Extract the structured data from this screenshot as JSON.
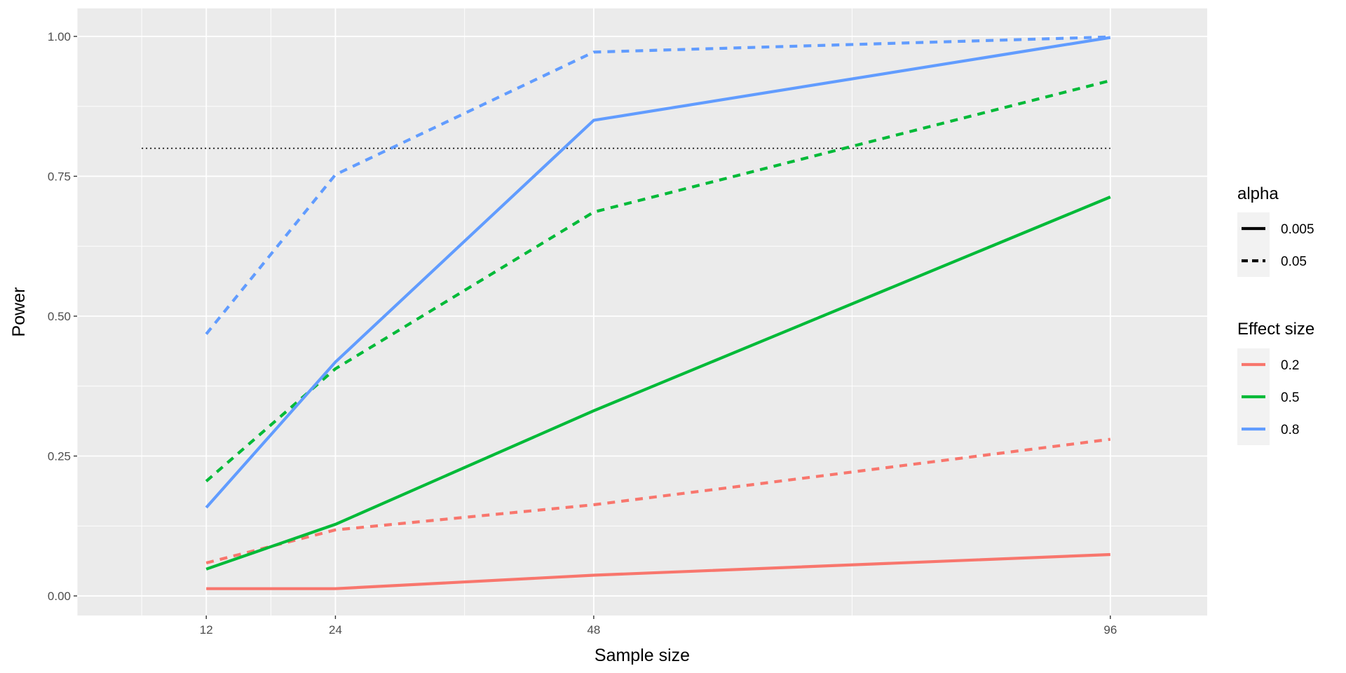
{
  "chart_data": {
    "type": "line",
    "xlabel": "Sample size",
    "ylabel": "Power",
    "x_ticks": [
      12,
      24,
      48,
      96
    ],
    "y_ticks": [
      "0.00",
      "0.25",
      "0.50",
      "0.75",
      "1.00"
    ],
    "xlim": [
      0,
      105
    ],
    "ylim": [
      -0.035,
      1.05
    ],
    "grid": true,
    "panel_background": "#EBEBEB",
    "reference_line": {
      "y": 0.8,
      "style": "dotted",
      "color": "#000000"
    },
    "legend_position": "right",
    "legends": {
      "alpha": {
        "title": "alpha",
        "entries": [
          {
            "label": "0.005",
            "linetype": "solid"
          },
          {
            "label": "0.05",
            "linetype": "dashed"
          }
        ]
      },
      "effect_size": {
        "title": "Effect size",
        "entries": [
          {
            "label": "0.2",
            "color": "#F8766D"
          },
          {
            "label": "0.5",
            "color": "#00BA38"
          },
          {
            "label": "0.8",
            "color": "#619CFF"
          }
        ]
      }
    },
    "x": [
      12,
      24,
      48,
      96
    ],
    "series": [
      {
        "effect_size": "0.2",
        "alpha": "0.005",
        "color": "#F8766D",
        "linetype": "solid",
        "values": [
          0.013,
          0.013,
          0.037,
          0.074
        ]
      },
      {
        "effect_size": "0.2",
        "alpha": "0.05",
        "color": "#F8766D",
        "linetype": "dashed",
        "values": [
          0.059,
          0.118,
          0.163,
          0.28
        ]
      },
      {
        "effect_size": "0.5",
        "alpha": "0.005",
        "color": "#00BA38",
        "linetype": "solid",
        "values": [
          0.048,
          0.128,
          0.331,
          0.713
        ]
      },
      {
        "effect_size": "0.5",
        "alpha": "0.05",
        "color": "#00BA38",
        "linetype": "dashed",
        "values": [
          0.205,
          0.406,
          0.686,
          0.921
        ]
      },
      {
        "effect_size": "0.8",
        "alpha": "0.005",
        "color": "#619CFF",
        "linetype": "solid",
        "values": [
          0.158,
          0.418,
          0.85,
          0.998
        ]
      },
      {
        "effect_size": "0.8",
        "alpha": "0.05",
        "color": "#619CFF",
        "linetype": "dashed",
        "values": [
          0.468,
          0.753,
          0.972,
          0.999
        ]
      }
    ]
  }
}
